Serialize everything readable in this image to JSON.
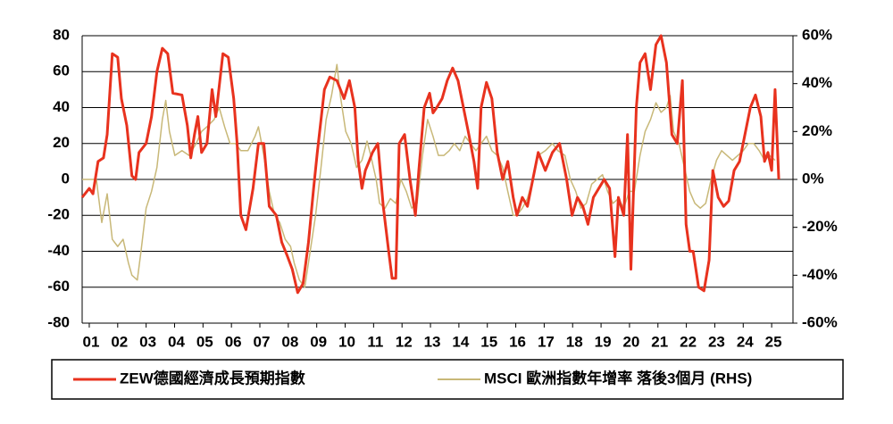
{
  "chart_data": {
    "type": "line",
    "xlim": [
      0.75,
      25.75
    ],
    "xticks": [
      {
        "value": 1,
        "label": "01"
      },
      {
        "value": 2,
        "label": "02"
      },
      {
        "value": 3,
        "label": "03"
      },
      {
        "value": 4,
        "label": "04"
      },
      {
        "value": 5,
        "label": "05"
      },
      {
        "value": 6,
        "label": "06"
      },
      {
        "value": 7,
        "label": "07"
      },
      {
        "value": 8,
        "label": "08"
      },
      {
        "value": 9,
        "label": "09"
      },
      {
        "value": 10,
        "label": "10"
      },
      {
        "value": 11,
        "label": "11"
      },
      {
        "value": 12,
        "label": "12"
      },
      {
        "value": 13,
        "label": "13"
      },
      {
        "value": 14,
        "label": "14"
      },
      {
        "value": 15,
        "label": "15"
      },
      {
        "value": 16,
        "label": "16"
      },
      {
        "value": 17,
        "label": "17"
      },
      {
        "value": 18,
        "label": "18"
      },
      {
        "value": 19,
        "label": "19"
      },
      {
        "value": 20,
        "label": "20"
      },
      {
        "value": 21,
        "label": "21"
      },
      {
        "value": 22,
        "label": "22"
      },
      {
        "value": 23,
        "label": "23"
      },
      {
        "value": 24,
        "label": "24"
      },
      {
        "value": 25,
        "label": "25"
      }
    ],
    "ylim": [
      -80,
      80
    ],
    "yticks": [
      -80,
      -60,
      -40,
      -20,
      0,
      20,
      40,
      60,
      80
    ],
    "y2lim": [
      -60,
      60
    ],
    "y2ticks": [
      {
        "value": -60,
        "label": "-60%"
      },
      {
        "value": -40,
        "label": "-40%"
      },
      {
        "value": -20,
        "label": "-20%"
      },
      {
        "value": 0,
        "label": "0%"
      },
      {
        "value": 20,
        "label": "20%"
      },
      {
        "value": 40,
        "label": "40%"
      },
      {
        "value": 60,
        "label": "60%"
      }
    ],
    "grid": true,
    "legend": "bottom",
    "series": [
      {
        "name": "ZEW德國經濟成長預期指數",
        "color": "#e8321e",
        "x": [
          0.75,
          1.0,
          1.13,
          1.31,
          1.5,
          1.63,
          1.81,
          2.0,
          2.13,
          2.32,
          2.5,
          2.63,
          2.75,
          3.0,
          3.19,
          3.38,
          3.57,
          3.76,
          3.94,
          4.26,
          4.45,
          4.57,
          4.7,
          4.82,
          4.95,
          5.14,
          5.32,
          5.45,
          5.7,
          5.89,
          6.08,
          6.2,
          6.33,
          6.51,
          6.76,
          6.95,
          7.14,
          7.33,
          7.58,
          7.77,
          7.95,
          8.14,
          8.33,
          8.52,
          8.71,
          8.89,
          9.02,
          9.27,
          9.46,
          9.71,
          9.96,
          10.15,
          10.34,
          10.46,
          10.59,
          10.71,
          10.84,
          10.96,
          11.15,
          11.34,
          11.53,
          11.65,
          11.78,
          11.9,
          12.09,
          12.28,
          12.47,
          12.59,
          12.78,
          12.97,
          13.09,
          13.22,
          13.41,
          13.59,
          13.78,
          13.97,
          14.16,
          14.35,
          14.53,
          14.66,
          14.78,
          14.97,
          15.16,
          15.35,
          15.54,
          15.72,
          15.91,
          16.04,
          16.23,
          16.41,
          16.6,
          16.79,
          17.04,
          17.29,
          17.54,
          17.79,
          17.98,
          18.17,
          18.36,
          18.54,
          18.73,
          18.92,
          19.11,
          19.3,
          19.49,
          19.61,
          19.8,
          19.93,
          20.05,
          20.24,
          20.37,
          20.55,
          20.74,
          20.93,
          21.11,
          21.3,
          21.49,
          21.68,
          21.86,
          21.99,
          22.12,
          22.24,
          22.43,
          22.62,
          22.8,
          22.93,
          23.12,
          23.31,
          23.49,
          23.68,
          23.87,
          24.06,
          24.25,
          24.43,
          24.62,
          24.75,
          24.87,
          25.0,
          25.12,
          25.25
        ],
        "values": [
          -10,
          -5,
          -8,
          10,
          12,
          25,
          70,
          68,
          45,
          30,
          2,
          0,
          15,
          20,
          35,
          60,
          73,
          70,
          48,
          47,
          30,
          12,
          25,
          35,
          15,
          20,
          50,
          35,
          70,
          68,
          45,
          20,
          -20,
          -28,
          -5,
          20,
          20,
          -15,
          -20,
          -35,
          -42,
          -50,
          -63,
          -58,
          -35,
          -5,
          15,
          50,
          57,
          55,
          45,
          55,
          40,
          10,
          -5,
          5,
          10,
          15,
          20,
          -15,
          -40,
          -55,
          -55,
          20,
          25,
          0,
          -20,
          5,
          40,
          48,
          37,
          40,
          45,
          55,
          62,
          55,
          40,
          25,
          10,
          -5,
          40,
          54,
          45,
          15,
          0,
          10,
          -10,
          -20,
          -10,
          -15,
          0,
          15,
          5,
          15,
          20,
          0,
          -20,
          -10,
          -15,
          -25,
          -10,
          -5,
          0,
          -5,
          -43,
          -10,
          -20,
          25,
          -50,
          40,
          65,
          70,
          50,
          75,
          80,
          65,
          25,
          20,
          55,
          -25,
          -40,
          -40,
          -60,
          -62,
          -45,
          5,
          -10,
          -15,
          -12,
          5,
          10,
          25,
          40,
          47,
          35,
          10,
          15,
          5,
          50,
          0
        ]
      },
      {
        "name": "MSCI 歐洲指數年增率 落後3個月 (RHS)",
        "color": "#c8b878",
        "axis": "y2",
        "x": [
          0.75,
          1.25,
          1.44,
          1.63,
          1.81,
          2.0,
          2.19,
          2.38,
          2.5,
          2.69,
          2.82,
          3.0,
          3.19,
          3.38,
          3.57,
          3.69,
          3.82,
          4.01,
          4.26,
          4.51,
          4.76,
          4.95,
          5.14,
          5.39,
          5.57,
          5.76,
          5.95,
          6.14,
          6.33,
          6.58,
          6.83,
          6.95,
          7.14,
          7.33,
          7.52,
          7.7,
          7.89,
          8.08,
          8.21,
          8.39,
          8.58,
          8.77,
          8.96,
          9.15,
          9.33,
          9.52,
          9.71,
          9.83,
          10.02,
          10.21,
          10.4,
          10.59,
          10.77,
          10.9,
          11.09,
          11.21,
          11.4,
          11.59,
          11.78,
          11.96,
          12.15,
          12.34,
          12.53,
          12.72,
          12.9,
          13.09,
          13.28,
          13.47,
          13.66,
          13.84,
          14.03,
          14.22,
          14.41,
          14.6,
          14.78,
          14.97,
          15.16,
          15.35,
          15.54,
          15.72,
          15.91,
          16.04,
          16.23,
          16.41,
          16.6,
          16.79,
          17.04,
          17.29,
          17.48,
          17.73,
          17.92,
          18.11,
          18.29,
          18.48,
          18.67,
          18.86,
          19.05,
          19.23,
          19.42,
          19.61,
          19.8,
          19.99,
          20.17,
          20.37,
          20.55,
          20.74,
          20.93,
          21.11,
          21.3,
          21.43,
          21.55,
          21.74,
          21.93,
          22.12,
          22.3,
          22.49,
          22.68,
          22.87,
          23.06,
          23.24,
          23.43,
          23.62,
          23.81,
          24.0,
          24.18,
          24.37,
          24.56,
          24.75,
          24.93,
          25.12
        ],
        "values": [
          0,
          0,
          -18,
          -6,
          -25,
          -28,
          -25,
          -35,
          -40,
          -42,
          -30,
          -12,
          -5,
          5,
          25,
          33,
          20,
          10,
          12,
          10,
          15,
          20,
          22,
          25,
          30,
          22,
          15,
          15,
          12,
          12,
          18,
          22,
          10,
          -5,
          -15,
          -18,
          -25,
          -28,
          -35,
          -42,
          -45,
          -30,
          -15,
          5,
          25,
          35,
          48,
          35,
          20,
          15,
          5,
          8,
          16,
          10,
          0,
          -10,
          -12,
          -8,
          -10,
          0,
          -5,
          -12,
          -10,
          10,
          25,
          18,
          10,
          10,
          12,
          15,
          12,
          18,
          15,
          12,
          15,
          18,
          12,
          10,
          5,
          -5,
          -15,
          -15,
          -12,
          -8,
          0,
          10,
          12,
          15,
          12,
          10,
          0,
          -5,
          -12,
          -10,
          -2,
          0,
          2,
          -5,
          -10,
          -8,
          -12,
          -5,
          -5,
          10,
          20,
          25,
          32,
          28,
          30,
          35,
          20,
          15,
          5,
          -5,
          -10,
          -12,
          -10,
          0,
          8,
          12,
          10,
          8,
          10,
          12,
          15,
          15,
          12,
          8,
          10,
          8
        ]
      }
    ]
  }
}
